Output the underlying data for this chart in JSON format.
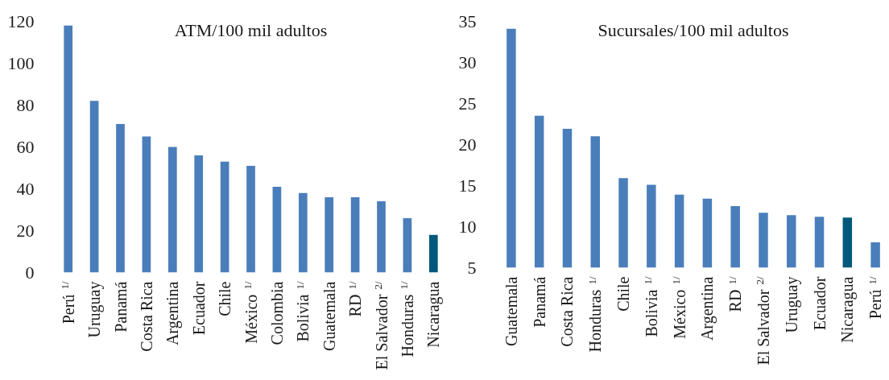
{
  "chart_data": [
    {
      "type": "bar",
      "title": "ATM/100 mil adultos",
      "categories": [
        "Perú $^{1/}$",
        "Uruguay",
        "Panamá",
        "Costa Rica",
        "Argentina",
        "Ecuador",
        "Chile",
        "México $^{1/}$",
        "Colombia",
        "Bolivia $^{1/}$",
        "Guatemala",
        "RD $^{1/}$",
        "El Salvador $^{2/}$",
        "Honduras $^{1/}$",
        "Nicaragua"
      ],
      "values": [
        118,
        82,
        71,
        65,
        60,
        56,
        53,
        51,
        41,
        38,
        36,
        36,
        34,
        26,
        18
      ],
      "colors": [
        "#4a7ebb",
        "#4a7ebb",
        "#4a7ebb",
        "#4a7ebb",
        "#4a7ebb",
        "#4a7ebb",
        "#4a7ebb",
        "#4a7ebb",
        "#4a7ebb",
        "#4a7ebb",
        "#4a7ebb",
        "#4a7ebb",
        "#4a7ebb",
        "#4a7ebb",
        "#00587a"
      ],
      "ylim": [
        0,
        120
      ],
      "yticks": [
        0,
        20,
        40,
        60,
        80,
        100,
        120
      ]
    },
    {
      "type": "bar",
      "title": "Sucursales/100 mil adultos",
      "categories": [
        "Guatemala",
        "Panamá",
        "Costa Rica",
        "Honduras $^{1/}$",
        "Chile",
        "Bolivia $^{1/}$",
        "México $^{1/}$",
        "Argentina",
        "RD $^{1/}$",
        "El Salvador $^{2/}$",
        "Uruguay",
        "Ecuador",
        "Nicaragua",
        "Perú $^{1/}$"
      ],
      "values": [
        34.1,
        23.5,
        21.9,
        21.0,
        15.9,
        15.1,
        13.9,
        13.4,
        12.5,
        11.7,
        11.4,
        11.2,
        11.1,
        8.1
      ],
      "colors": [
        "#4a7ebb",
        "#4a7ebb",
        "#4a7ebb",
        "#4a7ebb",
        "#4a7ebb",
        "#4a7ebb",
        "#4a7ebb",
        "#4a7ebb",
        "#4a7ebb",
        "#4a7ebb",
        "#4a7ebb",
        "#4a7ebb",
        "#00587a",
        "#4a7ebb"
      ],
      "ylim": [
        5,
        35
      ],
      "yticks": [
        5,
        10,
        15,
        20,
        25,
        30,
        35
      ]
    }
  ]
}
